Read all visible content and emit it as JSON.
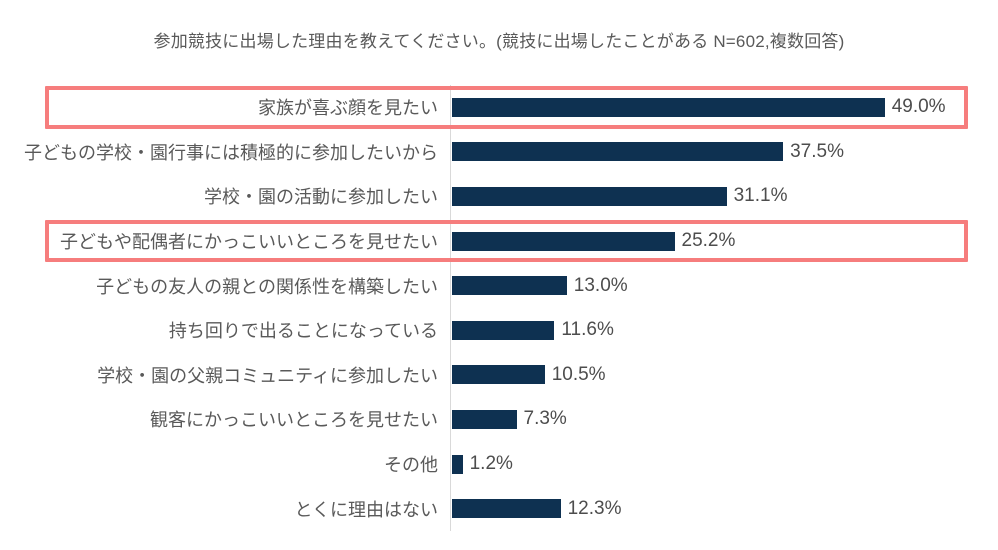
{
  "title": "参加競技に出場した理由を教えてください。(競技に出場したことがある N=602,複数回答)",
  "chart_data": {
    "type": "bar",
    "orientation": "horizontal",
    "title": "参加競技に出場した理由を教えてください。(競技に出場したことがある N=602,複数回答)",
    "categories": [
      "家族が喜ぶ顔を見たい",
      "子どもの学校・園行事には積極的に参加したいから",
      "学校・園の活動に参加したい",
      "子どもや配偶者にかっこいいところを見せたい",
      "子どもの友人の親との関係性を構築したい",
      "持ち回りで出ることになっている",
      "学校・園の父親コミュニティに参加したい",
      "観客にかっこいいところを見せたい",
      "その他",
      "とくに理由はない"
    ],
    "values": [
      49.0,
      37.5,
      31.1,
      25.2,
      13.0,
      11.6,
      10.5,
      7.3,
      1.2,
      12.3
    ],
    "value_labels": [
      "49.0%",
      "37.5%",
      "31.1%",
      "25.2%",
      "13.0%",
      "11.6%",
      "10.5%",
      "7.3%",
      "1.2%",
      "12.3%"
    ],
    "unit": "%",
    "xlim_estimate": [
      0,
      58
    ],
    "grid": false,
    "legend": false,
    "highlighted_rows": [
      0,
      3
    ],
    "bar_color": "#0e3151",
    "highlight_border_color": "#f67d7d",
    "axis_line_color": "#d9d9d9",
    "label_text_color": "#595959",
    "value_text_color": "#4d4d4d"
  }
}
